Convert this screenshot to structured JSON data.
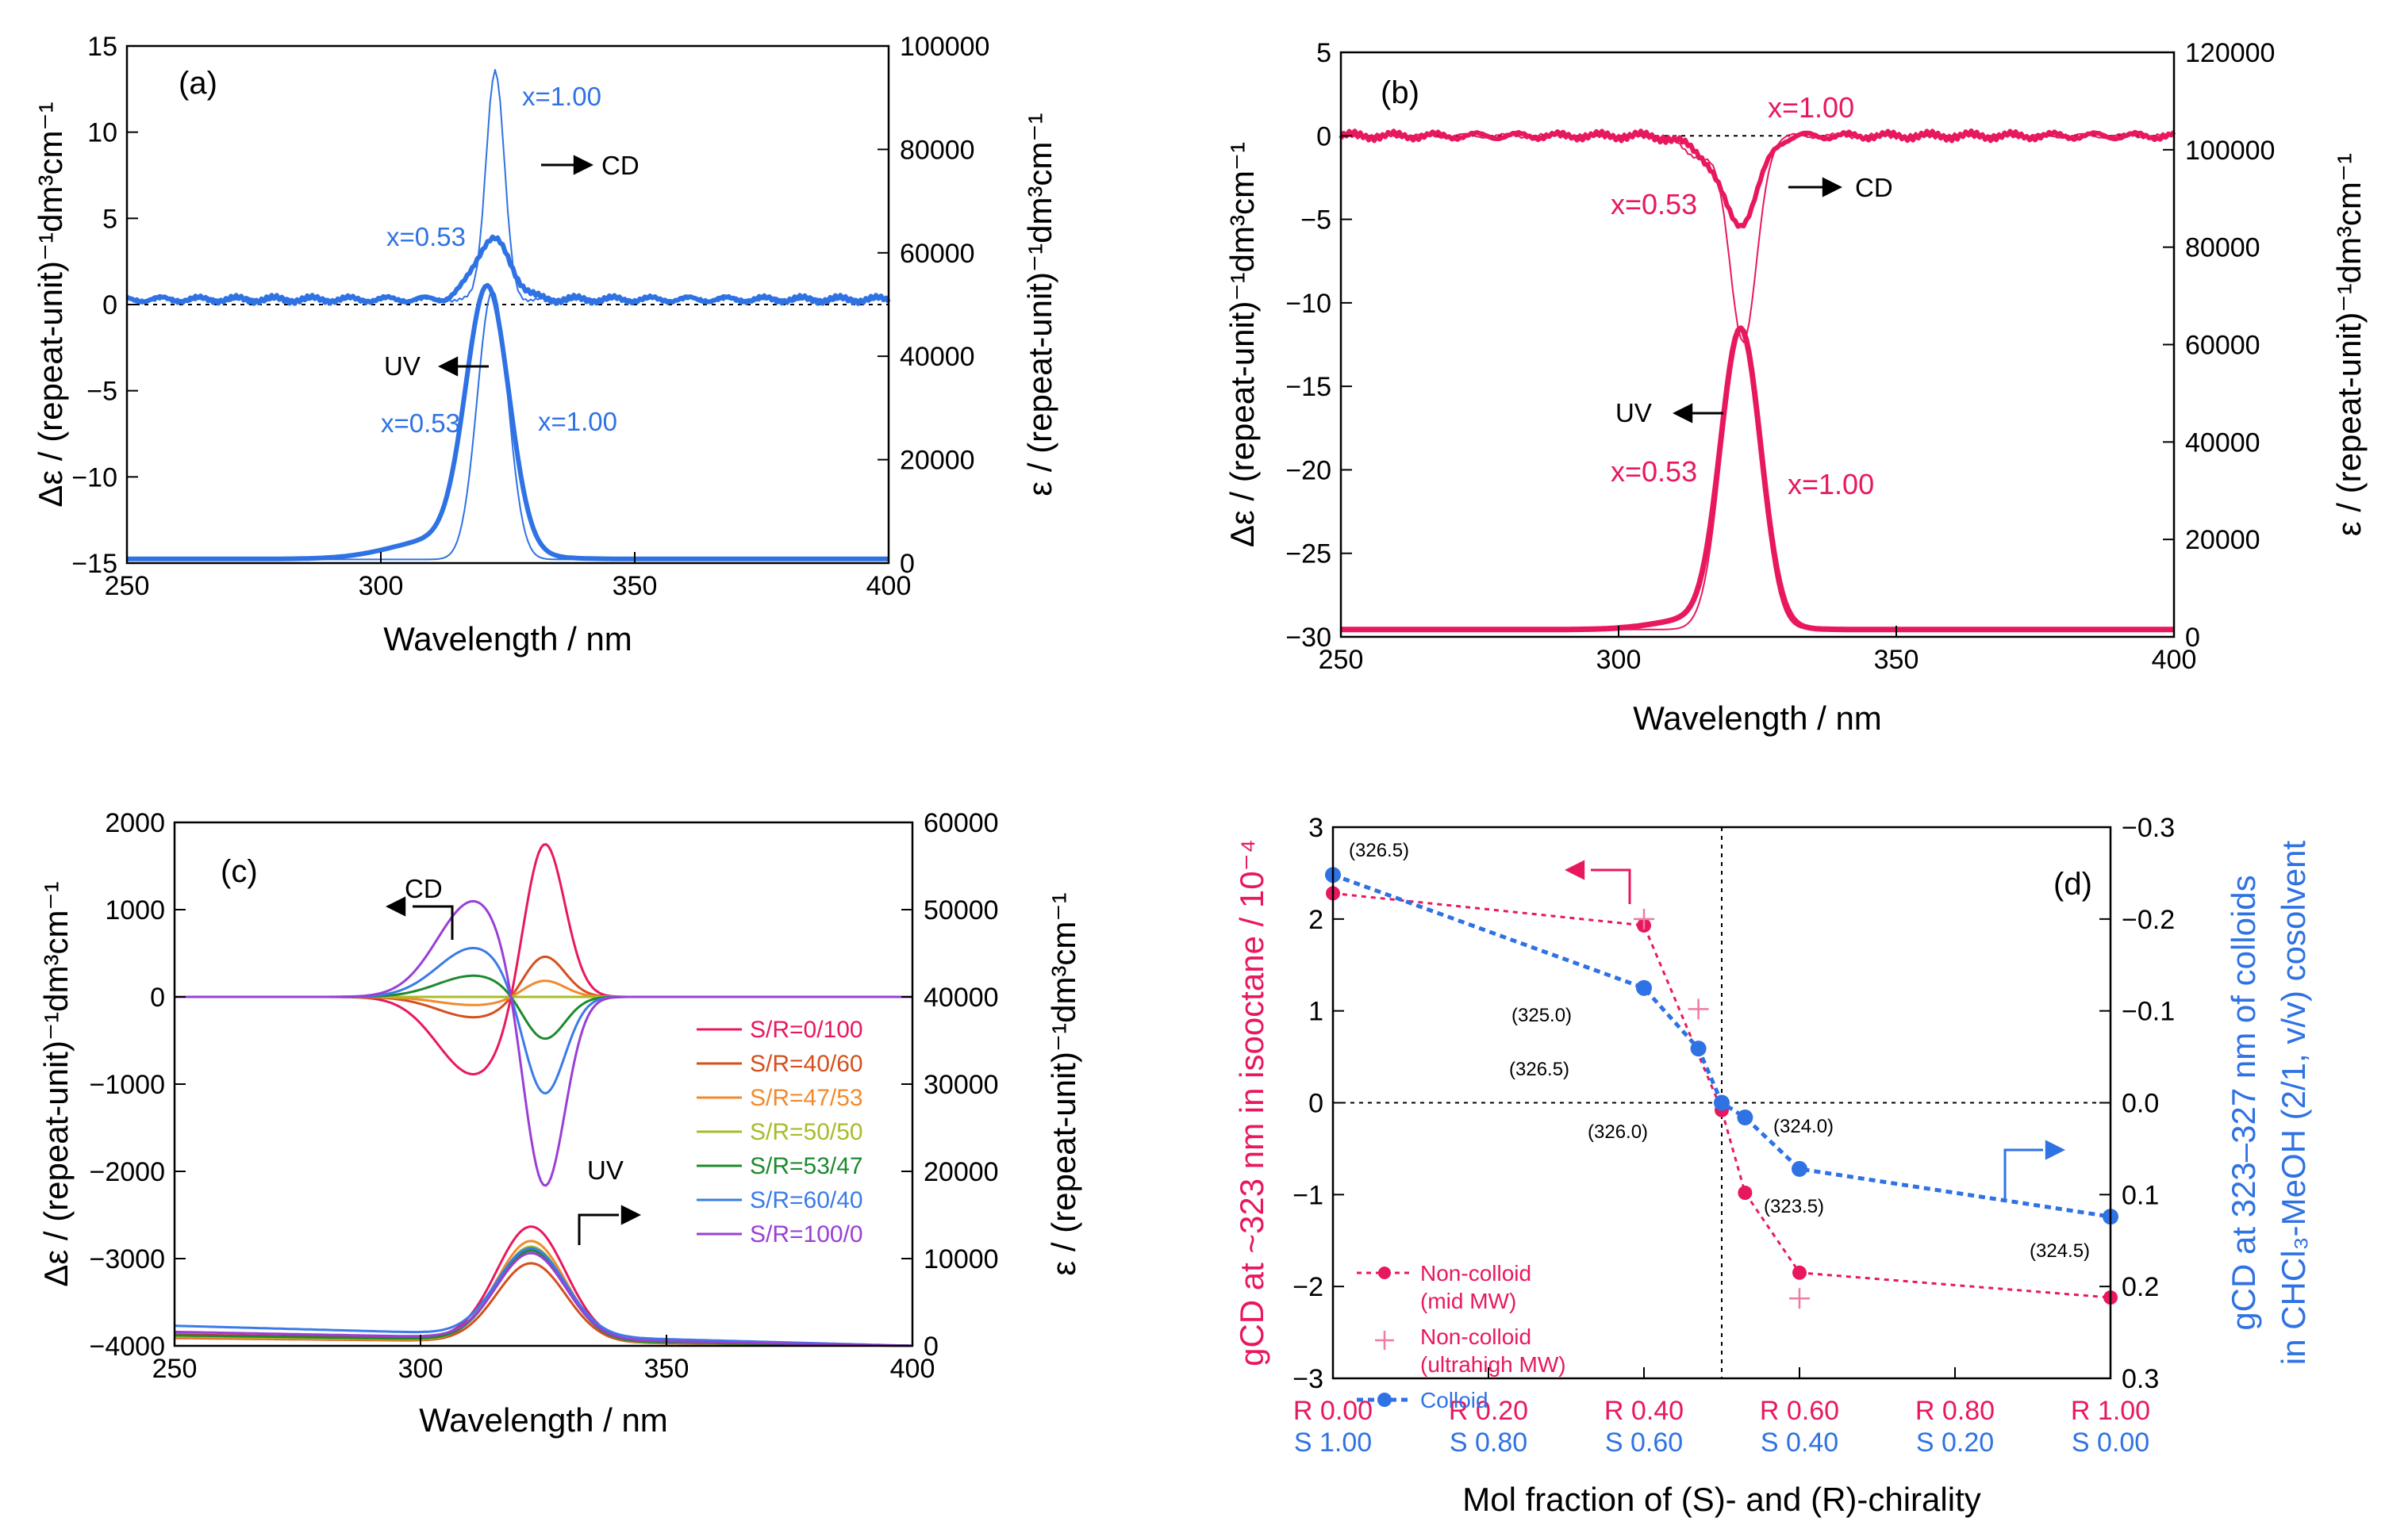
{
  "colors": {
    "blue": "#2f72e3",
    "pink": "#e8185f",
    "black": "#000000"
  },
  "chart_data": [
    {
      "id": "a",
      "type": "line",
      "panel_label": "(a)",
      "xlabel": "Wavelength / nm",
      "ylabel": "Δε / (repeat-unit)⁻¹dm³cm⁻¹",
      "y2label": "ε / (repeat-unit)⁻¹dm³cm⁻¹",
      "xlim": [
        250,
        400
      ],
      "ylim": [
        -15,
        15
      ],
      "y2lim": [
        0,
        100000
      ],
      "xticks": [
        "250",
        "300",
        "350",
        "400"
      ],
      "yticks": [
        "15",
        "10",
        "5",
        "0",
        "−5",
        "−10",
        "−15"
      ],
      "y2ticks": [
        "100000",
        "80000",
        "60000",
        "40000",
        "20000",
        "0"
      ],
      "annotations": {
        "cd_x100": "x=1.00",
        "cd_arrow": "CD",
        "cd_x053": "x=0.53",
        "uv_arrow": "UV",
        "uv_x053": "x=0.53",
        "uv_x100": "x=1.00"
      },
      "series": [
        {
          "name": "CD x=0.53",
          "center": 322,
          "peak": 3.5,
          "width": 3.5,
          "noise": 0.25
        },
        {
          "name": "CD x=1.00",
          "center": 322.5,
          "peak": 13.3,
          "width": 1.8,
          "noise": 0.15
        },
        {
          "name": "UV x=0.53",
          "center": 321,
          "peak_eps": 50000,
          "width": 4.2,
          "base_eps": 800
        },
        {
          "name": "UV x=1.00",
          "center": 322,
          "peak_eps": 52000,
          "width": 3.0,
          "base_eps": 700
        }
      ]
    },
    {
      "id": "b",
      "type": "line",
      "panel_label": "(b)",
      "xlabel": "Wavelength / nm",
      "ylabel": "Δε / (repeat-unit)⁻¹dm³cm⁻¹",
      "y2label": "ε / (repeat-unit)⁻¹dm³cm⁻¹",
      "xlim": [
        250,
        400
      ],
      "ylim": [
        -30,
        5
      ],
      "y2lim": [
        0,
        120000
      ],
      "xticks": [
        "250",
        "300",
        "350",
        "400"
      ],
      "yticks": [
        "5",
        "0",
        "−5",
        "−10",
        "−15",
        "−20",
        "−25",
        "−30"
      ],
      "y2ticks": [
        "120000",
        "100000",
        "80000",
        "60000",
        "40000",
        "20000",
        "0"
      ],
      "annotations": {
        "cd_x100": "x=1.00",
        "cd_arrow": "CD",
        "cd_x053": "x=0.53",
        "uv_arrow": "UV",
        "uv_x053": "x=0.53",
        "uv_x100": "x=1.00"
      },
      "series": [
        {
          "name": "CD x=0.53",
          "center": 322,
          "peak": -5.0,
          "width": 3.2,
          "noise": 0.3
        },
        {
          "name": "CD x=1.00",
          "center": 322.5,
          "peak": -12.3,
          "width": 2.4,
          "noise": 0.2
        },
        {
          "name": "UV x=0.53",
          "center": 322,
          "peak_eps": 60000,
          "width": 3.6,
          "base_eps": 1500
        },
        {
          "name": "UV x=1.00",
          "center": 322,
          "peak_eps": 62000,
          "width": 3.4,
          "base_eps": 1500
        }
      ]
    },
    {
      "id": "c",
      "type": "line",
      "panel_label": "(c)",
      "xlabel": "Wavelength / nm",
      "ylabel": "Δε / (repeat-unit)⁻¹dm³cm⁻¹",
      "y2label": "ε / (repeat-unit)⁻¹dm³cm⁻¹",
      "xlim": [
        250,
        400
      ],
      "ylim": [
        -4000,
        2000
      ],
      "y2lim": [
        0,
        60000
      ],
      "xticks": [
        "250",
        "300",
        "350",
        "400"
      ],
      "yticks": [
        "2000",
        "1000",
        "0",
        "−1000",
        "−2000",
        "−3000",
        "−4000"
      ],
      "y2ticks": [
        "60000",
        "50000",
        "40000",
        "30000",
        "20000",
        "10000",
        "0"
      ],
      "annotations": {
        "cd_arrow": "CD",
        "uv_arrow": "UV"
      },
      "series": [
        {
          "name": "S/R=0/100",
          "color": "#e8185f",
          "cd_amp": 1900,
          "uv_peak": 13000,
          "uv_base": 1300
        },
        {
          "name": "S/R=40/60",
          "color": "#d4501e",
          "cd_amp": 500,
          "uv_peak": 9000,
          "uv_base": 900
        },
        {
          "name": "S/R=47/53",
          "color": "#f28a2d",
          "cd_amp": 200,
          "uv_peak": 11500,
          "uv_base": 1000
        },
        {
          "name": "S/R=50/50",
          "color": "#a9bb2b",
          "cd_amp": 0,
          "uv_peak": 10800,
          "uv_base": 1100
        },
        {
          "name": "S/R=53/47",
          "color": "#1e8a2e",
          "cd_amp": -520,
          "uv_peak": 10300,
          "uv_base": 1200
        },
        {
          "name": "S/R=60/40",
          "color": "#3a7be8",
          "cd_amp": -1200,
          "uv_peak": 10000,
          "uv_base": 2300
        },
        {
          "name": "S/R=100/0",
          "color": "#9a3fd6",
          "cd_amp": -2350,
          "uv_peak": 9800,
          "uv_base": 1600
        }
      ]
    },
    {
      "id": "d",
      "type": "scatter",
      "panel_label": "(d)",
      "xlabel": "Mol fraction of (S)- and (R)-chirality",
      "ylabel_main": "gCD at ~323 nm in isooctane / 10⁻⁴",
      "y2label_main": "gCD at 323–327 nm of colloids",
      "y2label_line2": "in CHCl₃-MeOH (2/1, v/v) cosolvent",
      "xlim": [
        0,
        1
      ],
      "ylim": [
        -3,
        3
      ],
      "y2lim": [
        0.3,
        -0.3
      ],
      "xticks_r": [
        "R 0.00",
        "R 0.20",
        "R 0.40",
        "R 0.60",
        "R 0.80",
        "R 1.00"
      ],
      "xticks_s": [
        "S 1.00",
        "S 0.80",
        "S 0.60",
        "S 0.40",
        "S 0.20",
        "S 0.00"
      ],
      "yticks": [
        "3",
        "2",
        "1",
        "0",
        "−1",
        "−2",
        "−3"
      ],
      "y2ticks": [
        "−0.3",
        "−0.2",
        "−0.1",
        "0.0",
        "0.1",
        "0.2",
        "0.3"
      ],
      "legend": {
        "noncolloid_mid": "Non-colloid",
        "noncolloid_mid_2": "(mid MW)",
        "noncolloid_uhmw": "Non-colloid",
        "noncolloid_uhmw_2": "(ultrahigh MW)",
        "colloid": "Colloid"
      },
      "series": [
        {
          "name": "Non-colloid (mid MW)",
          "x": [
            0.0,
            0.4,
            0.5,
            0.53,
            0.6,
            1.0
          ],
          "y": [
            2.28,
            1.93,
            -0.08,
            -0.98,
            -1.85,
            -2.12
          ]
        },
        {
          "name": "Non-colloid (ultrahigh MW)",
          "x": [
            0.4,
            0.47,
            0.6
          ],
          "y": [
            2.0,
            1.02,
            -2.13
          ]
        },
        {
          "name": "Colloid",
          "x": [
            0.0,
            0.4,
            0.47,
            0.5,
            0.53,
            0.6,
            1.0
          ],
          "y": [
            -0.248,
            -0.125,
            -0.059,
            0.0,
            0.016,
            0.072,
            0.124
          ]
        }
      ],
      "point_labels": [
        "(326.5)",
        "(325.0)",
        "(326.5)",
        "(326.0)",
        "(324.0)",
        "(323.5)",
        "(324.5)"
      ]
    }
  ]
}
